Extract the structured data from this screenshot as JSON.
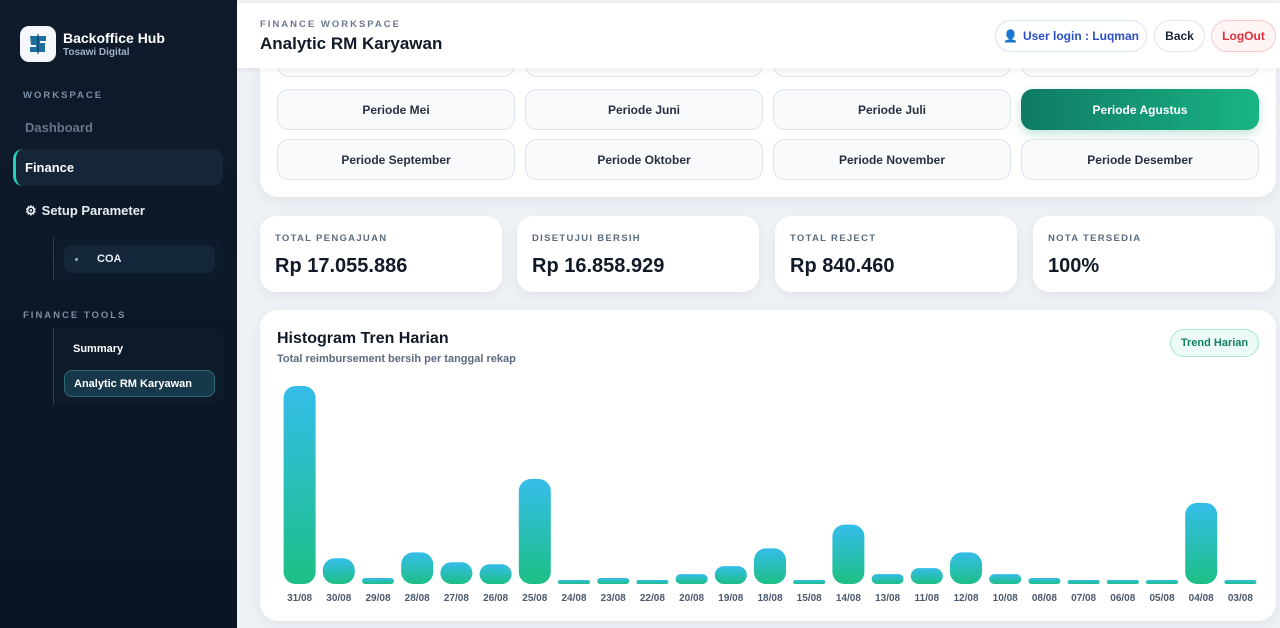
{
  "brand": {
    "title": "Backoffice Hub",
    "subtitle": "Tosawi Digital",
    "logo_icon": "dollar-logo-icon"
  },
  "sidebar": {
    "workspace_label": "WORKSPACE",
    "dashboard": "Dashboard",
    "finance": "Finance",
    "setup": "Setup Parameter",
    "coa": "COA",
    "tools_label": "FINANCE TOOLS",
    "summary": "Summary",
    "analytic": "Analytic RM Karyawan"
  },
  "header": {
    "kicker": "FINANCE WORKSPACE",
    "title": "Analytic RM Karyawan",
    "user_login": "User login : Luqman",
    "back": "Back",
    "logout": "LogOut"
  },
  "periods": {
    "row1": [
      "Periode Mei",
      "Periode Juni",
      "Periode Juli",
      "Periode Agustus"
    ],
    "row2": [
      "Periode September",
      "Periode Oktober",
      "Periode November",
      "Periode Desember"
    ],
    "active": "Periode Agustus"
  },
  "stats": [
    {
      "label": "TOTAL PENGAJUAN",
      "value": "Rp 17.055.886"
    },
    {
      "label": "DISETUJUI BERSIH",
      "value": "Rp 16.858.929"
    },
    {
      "label": "TOTAL REJECT",
      "value": "Rp 840.460"
    },
    {
      "label": "NOTA TERSEDIA",
      "value": "100%"
    }
  ],
  "chart": {
    "title": "Histogram Tren Harian",
    "subtitle": "Total reimbursement bersih per tanggal rekap",
    "badge": "Trend Harian"
  },
  "colors": {
    "accent": "#19b483",
    "bar_top": "#35bdea",
    "bar_bottom": "#1dbf85",
    "logout": "#e0303a"
  },
  "chart_data": {
    "type": "bar",
    "categories": [
      "31/08",
      "30/08",
      "29/08",
      "28/08",
      "27/08",
      "26/08",
      "25/08",
      "24/08",
      "23/08",
      "22/08",
      "20/08",
      "19/08",
      "18/08",
      "15/08",
      "14/08",
      "13/08",
      "11/08",
      "12/08",
      "10/08",
      "08/08",
      "07/08",
      "06/08",
      "05/08",
      "04/08",
      "03/08"
    ],
    "values": [
      100,
      13,
      3,
      16,
      11,
      10,
      53,
      2,
      3,
      2,
      5,
      9,
      18,
      2,
      30,
      5,
      8,
      16,
      5,
      3,
      2,
      2,
      2,
      41,
      2
    ],
    "title": "Histogram Tren Harian",
    "xlabel": "",
    "ylabel": "",
    "ylim": [
      0,
      100
    ],
    "grid": false
  }
}
